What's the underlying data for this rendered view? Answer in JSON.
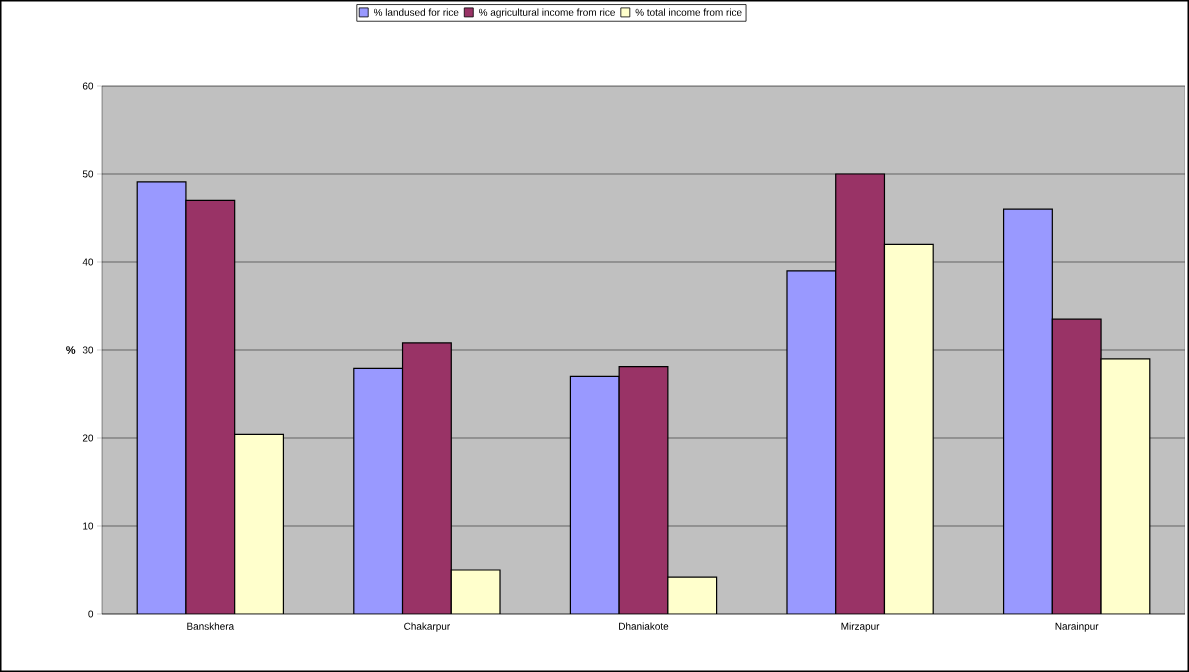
{
  "chart_data": {
    "type": "bar",
    "ylabel": "%",
    "categories": [
      "Banskhera",
      "Chakarpur",
      "Dhaniakote",
      "Mirzapur",
      "Narainpur"
    ],
    "series": [
      {
        "name": "% landused for rice",
        "color": "#9999ff",
        "values": [
          49.1,
          27.9,
          27.0,
          39.0,
          46.0
        ]
      },
      {
        "name": "% agricultural income from rice",
        "color": "#993366",
        "values": [
          47.0,
          30.8,
          28.1,
          50.0,
          33.5
        ]
      },
      {
        "name": "% total income from rice",
        "color": "#ffffcc",
        "values": [
          20.4,
          5.0,
          4.2,
          42.0,
          29.0
        ]
      }
    ],
    "ylim": [
      0,
      60
    ],
    "yticks": [
      0,
      10,
      20,
      30,
      40,
      50,
      60
    ],
    "grid": "y",
    "legend": "top"
  }
}
